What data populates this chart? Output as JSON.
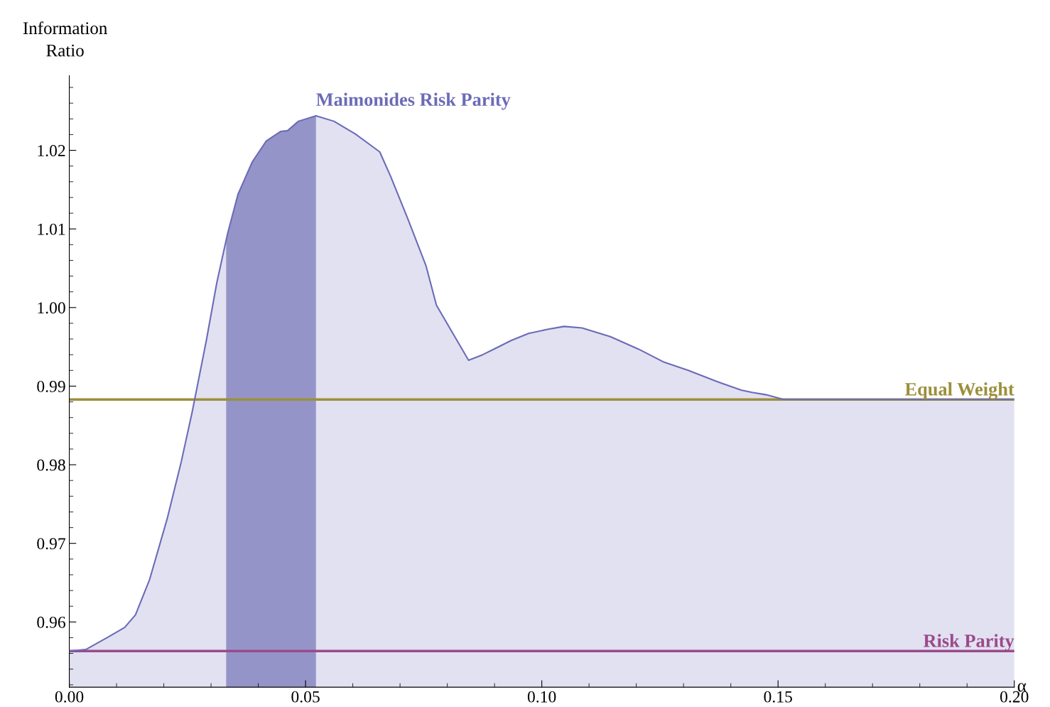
{
  "chart_data": {
    "type": "area",
    "ylabel": "Information\nRatio",
    "xlabel": "α",
    "series": [
      {
        "name": "Maimonides Risk Parity",
        "color": "#6b6bb8",
        "x": [
          0,
          0.0035,
          0.008,
          0.0117,
          0.014,
          0.017,
          0.0207,
          0.0237,
          0.026,
          0.029,
          0.0312,
          0.0335,
          0.0357,
          0.0387,
          0.0417,
          0.0447,
          0.0462,
          0.0485,
          0.0522,
          0.056,
          0.0605,
          0.0657,
          0.068,
          0.0717,
          0.0755,
          0.0777,
          0.0807,
          0.0845,
          0.0875,
          0.0905,
          0.0935,
          0.0972,
          0.101,
          0.1047,
          0.1085,
          0.1145,
          0.1205,
          0.1257,
          0.131,
          0.137,
          0.1422,
          0.1445,
          0.1475,
          0.1512,
          0.2
        ],
        "values": [
          0.9563,
          0.9565,
          0.958,
          0.9593,
          0.9609,
          0.9654,
          0.9731,
          0.9804,
          0.9867,
          0.9958,
          1.0031,
          1.0094,
          1.0144,
          1.0185,
          1.0212,
          1.0224,
          1.0225,
          1.0237,
          1.0244,
          1.0237,
          1.0221,
          1.0198,
          1.0167,
          1.0112,
          1.0053,
          1.0003,
          0.9972,
          0.9933,
          0.994,
          0.9949,
          0.9958,
          0.9967,
          0.9972,
          0.9976,
          0.9974,
          0.9963,
          0.9947,
          0.9931,
          0.992,
          0.9906,
          0.9895,
          0.9892,
          0.9889,
          0.9883,
          0.9883
        ]
      }
    ],
    "ref_lines": [
      {
        "axis": "y",
        "value": 0.9883,
        "label": "Equal Weight",
        "color": "#9c8f3a"
      },
      {
        "axis": "y",
        "value": 0.9563,
        "label": "Risk Parity",
        "color": "#9b4a8a"
      }
    ],
    "bands": [
      {
        "axis": "x",
        "from": 0.0332,
        "to": 0.0522,
        "label": null,
        "color": "#a09fcc"
      }
    ],
    "xlim": [
      0,
      0.2
    ],
    "ylim": [
      0.9517,
      1.0295
    ],
    "xticks": [
      {
        "value": 0,
        "label": "0.00"
      },
      {
        "value": 0.05,
        "label": "0.05"
      },
      {
        "value": 0.1,
        "label": "0.10"
      },
      {
        "value": 0.15,
        "label": "0.15"
      },
      {
        "value": 0.2,
        "label": "0.20"
      }
    ],
    "yticks": [
      0.96,
      0.97,
      0.98,
      0.99,
      {
        "value": 1.0,
        "label": "1.00"
      },
      1.01,
      1.02
    ],
    "grid": false,
    "legend": false
  }
}
